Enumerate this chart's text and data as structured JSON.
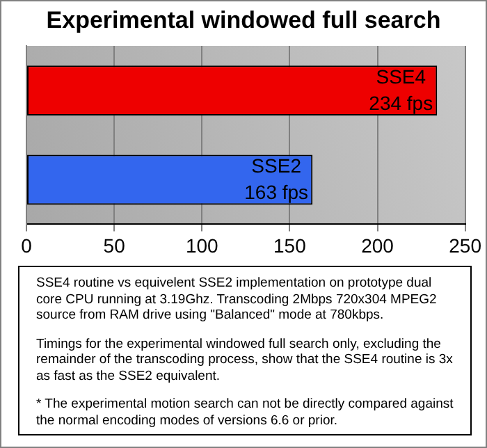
{
  "chart_data": {
    "type": "bar",
    "orientation": "horizontal",
    "title": "Experimental windowed full search",
    "categories": [
      "SSE4",
      "SSE2"
    ],
    "values": [
      234,
      163
    ],
    "colors": [
      "#ee0000",
      "#3366ee"
    ],
    "value_labels": [
      "234 fps",
      "163 fps"
    ],
    "xlim": [
      0,
      250
    ],
    "xticks": [
      0,
      50,
      100,
      150,
      200,
      250
    ],
    "grid": "x",
    "tick_labels": "x",
    "annotations": [
      "SSE4 routine vs equivelent SSE2 implementation on prototype dual core CPU running at 3.19Ghz. Transcoding 2Mbps 720x304 MPEG2 source from RAM drive using \"Balanced\" mode at 780kbps.",
      "Timings for the experimental windowed full search only, excluding the remainder of the transcoding process, show that the SSE4 routine is 3x as fast as the SSE2 equivalent.",
      "* The experimental motion search can not be directly compared against the normal encoding modes of versions 6.6 or prior."
    ]
  }
}
